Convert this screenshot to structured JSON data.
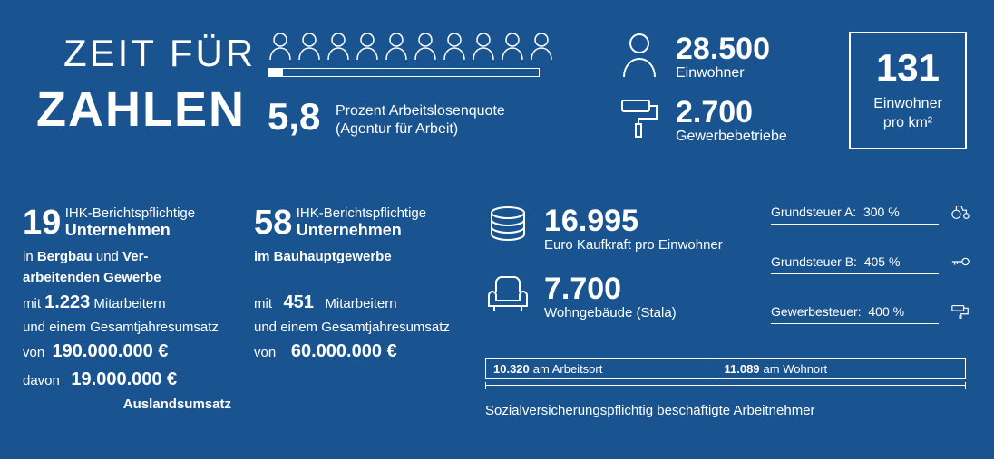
{
  "title": {
    "line1": "ZEIT FÜR",
    "line2": "ZAHLEN"
  },
  "unemployment": {
    "people_count": 10,
    "value": "5,8",
    "line1": "Prozent Arbeitslosenquote",
    "line2": "(Agentur für Arbeit)",
    "progress_pct": 5.8
  },
  "population": {
    "value": "28.500",
    "label": "Einwohner"
  },
  "businesses": {
    "value": "2.700",
    "label": "Gewerbebetriebe"
  },
  "density": {
    "value": "131",
    "label_l1": "Einwohner",
    "label_l2": "pro km²"
  },
  "company_a": {
    "count": "19",
    "head_l1": "IHK-Berichtspflichtige",
    "head_l2": "Unternehmen",
    "in_1": "Bergbau",
    "and": "und",
    "in_2": "Ver-",
    "in_3": "arbeitenden Gewerbe",
    "mit": "mit",
    "employees": "1.223",
    "emp_lbl": "Mitarbeitern",
    "turn_l1": "und einem Gesamtjahresumsatz",
    "von": "von",
    "revenue": "190.000.000 €",
    "davon": "davon",
    "foreign": "19.000.000 €",
    "foreign_lbl": "Auslandsumsatz"
  },
  "company_b": {
    "count": "58",
    "head_l1": "IHK-Berichtspflichtige",
    "head_l2": "Unternehmen",
    "sector": "im Bauhauptgewerbe",
    "mit": "mit",
    "employees": "451",
    "emp_lbl": "Mitarbeitern",
    "turn_l1": "und einem Gesamtjahresumsatz",
    "von": "von",
    "revenue": "60.000.000 €"
  },
  "purchasing_power": {
    "value": "16.995",
    "label": "Euro Kaufkraft pro Einwohner"
  },
  "residential": {
    "value": "7.700",
    "label": "Wohngebäude (Stala)"
  },
  "taxes": {
    "a": {
      "label": "Grundsteuer A:",
      "value": "300 %"
    },
    "b": {
      "label": "Grundsteuer B:",
      "value": "405 %"
    },
    "c": {
      "label": "Gewerbesteuer:",
      "value": "400 %"
    }
  },
  "insured": {
    "seg1_val": "10.320",
    "seg1_lbl": "am Arbeitsort",
    "seg2_val": "11.089",
    "seg2_lbl": "am Wohnort",
    "seg1_pct": 48.2,
    "caption": "Sozialversicherungspflichtig beschäftigte Arbeitnehmer"
  },
  "colors": {
    "bg": "#1a5490",
    "fg": "#ffffff"
  }
}
